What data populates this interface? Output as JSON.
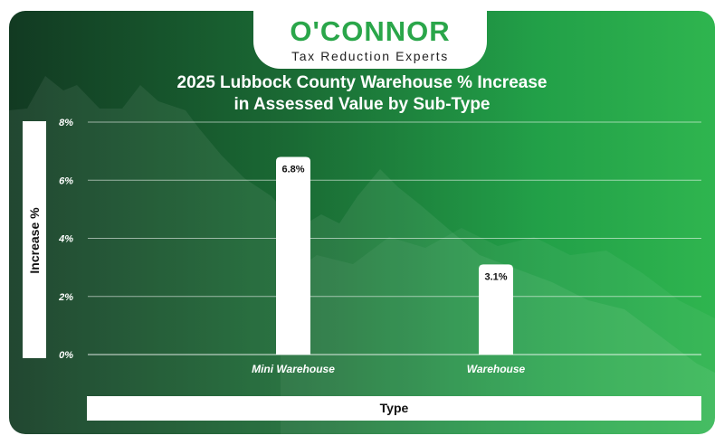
{
  "brand": {
    "name": "O'CONNOR",
    "tagline": "Tax Reduction Experts"
  },
  "chart_data": {
    "type": "bar",
    "title": "2025 Lubbock County Warehouse % Increase in Assessed Value by Sub-Type",
    "title_lines": [
      "2025 Lubbock County Warehouse % Increase",
      "in Assessed Value by Sub-Type"
    ],
    "xlabel": "Type",
    "ylabel": "Increase %",
    "categories": [
      "Mini Warehouse",
      "Warehouse"
    ],
    "values": [
      6.8,
      3.1
    ],
    "data_labels": [
      "6.8%",
      "3.1%"
    ],
    "ylim": [
      0,
      8
    ],
    "yticks": [
      0,
      2,
      4,
      6,
      8
    ],
    "ytick_labels": [
      "0%",
      "2%",
      "4%",
      "6%",
      "8%"
    ],
    "grid": true,
    "bar_color": "#ffffff"
  },
  "colors": {
    "background_start": "#123a22",
    "background_end": "#2fb54f",
    "brand_green": "#2aa64a"
  }
}
